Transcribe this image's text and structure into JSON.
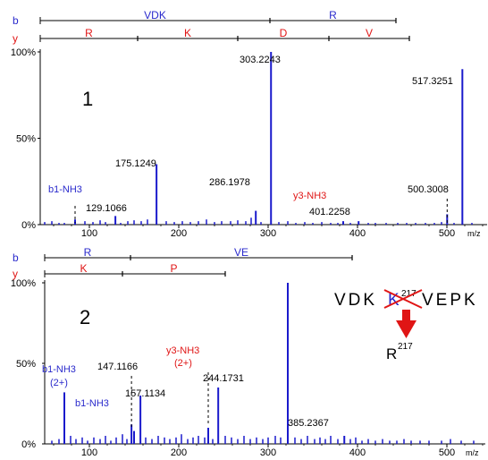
{
  "chart_data": [
    {
      "type": "bar",
      "panel_label": "1",
      "xlabel": "m/z",
      "xlim": [
        45,
        545
      ],
      "ylim": [
        0,
        100
      ],
      "x_ticks": [
        100,
        200,
        300,
        400,
        500
      ],
      "y_ticks": [
        "0%",
        "50%",
        "100%"
      ],
      "ladders": [
        {
          "ion": "b",
          "segments": [
            "VDK",
            "R"
          ],
          "color": "#2a2acc",
          "marks": [
            45,
            302,
            443
          ]
        },
        {
          "ion": "y",
          "segments": [
            "R",
            "K",
            "D",
            "V"
          ],
          "color": "#e01515",
          "marks": [
            45,
            154,
            266,
            368,
            458
          ]
        }
      ],
      "peaks": [
        {
          "mz": 84,
          "intensity": 3,
          "label": "b1-NH3",
          "label_color": "#2a2acc"
        },
        {
          "mz": 129.1066,
          "intensity": 5,
          "label": "129.1066"
        },
        {
          "mz": 175.1249,
          "intensity": 35,
          "label": "175.1249"
        },
        {
          "mz": 286.1978,
          "intensity": 8,
          "label": "286.1978"
        },
        {
          "mz": 303.2243,
          "intensity": 100,
          "label": "303.2243"
        },
        {
          "mz": 384,
          "intensity": 2,
          "label": "y3-NH3",
          "label_color": "#e01515"
        },
        {
          "mz": 401.2258,
          "intensity": 2,
          "label": "401.2258"
        },
        {
          "mz": 500.3008,
          "intensity": 6,
          "label": "500.3008"
        },
        {
          "mz": 517.3251,
          "intensity": 90,
          "label": "517.3251"
        }
      ],
      "noise": [
        [
          50,
          1.5
        ],
        [
          58,
          2
        ],
        [
          66,
          1
        ],
        [
          72,
          1
        ],
        [
          95,
          2
        ],
        [
          104,
          1.5
        ],
        [
          112,
          2.5
        ],
        [
          118,
          1.5
        ],
        [
          135,
          1
        ],
        [
          143,
          2
        ],
        [
          150,
          2.5
        ],
        [
          158,
          2
        ],
        [
          165,
          3
        ],
        [
          186,
          2
        ],
        [
          195,
          1.5
        ],
        [
          204,
          2
        ],
        [
          213,
          1.5
        ],
        [
          222,
          2
        ],
        [
          231,
          3
        ],
        [
          240,
          1.5
        ],
        [
          248,
          2
        ],
        [
          258,
          2
        ],
        [
          266,
          2.5
        ],
        [
          275,
          2
        ],
        [
          281,
          4
        ],
        [
          292,
          1.5
        ],
        [
          312,
          1.5
        ],
        [
          322,
          2
        ],
        [
          331,
          1
        ],
        [
          341,
          1.5
        ],
        [
          350,
          1
        ],
        [
          360,
          1.5
        ],
        [
          370,
          1
        ],
        [
          378,
          1
        ],
        [
          392,
          1
        ],
        [
          412,
          1
        ],
        [
          420,
          1
        ],
        [
          432,
          1
        ],
        [
          445,
          1
        ],
        [
          455,
          1
        ],
        [
          465,
          1
        ],
        [
          476,
          1
        ],
        [
          486,
          1
        ],
        [
          494,
          1.5
        ],
        [
          508,
          1
        ],
        [
          528,
          1
        ]
      ],
      "dashed_markers": [
        84,
        500.3008
      ]
    },
    {
      "type": "bar",
      "panel_label": "2",
      "xlabel": "m/z",
      "xlim": [
        50,
        543
      ],
      "ylim": [
        0,
        100
      ],
      "x_ticks": [
        100,
        200,
        300,
        400,
        500
      ],
      "y_ticks": [
        "0%",
        "50%",
        "100%"
      ],
      "ladders": [
        {
          "ion": "b",
          "segments": [
            "R",
            "VE"
          ],
          "color": "#2a2acc",
          "marks": [
            50,
            146,
            394
          ]
        },
        {
          "ion": "y",
          "segments": [
            "K",
            "P"
          ],
          "color": "#e01515",
          "marks": [
            50,
            137,
            252
          ]
        }
      ],
      "peaks": [
        {
          "mz": 72,
          "intensity": 32,
          "label": "b1-NH3\n(2+)",
          "label_color": "#2a2acc"
        },
        {
          "mz": 147.1166,
          "intensity": 12,
          "label": "147.1166"
        },
        {
          "mz": 150,
          "intensity": 8,
          "label": "b1-NH3",
          "label_color": "#2a2acc"
        },
        {
          "mz": 157.1134,
          "intensity": 30,
          "label": "157.1134"
        },
        {
          "mz": 233,
          "intensity": 10,
          "label": "y3-NH3\n(2+)",
          "label_color": "#e01515"
        },
        {
          "mz": 244.1731,
          "intensity": 35,
          "label": "244.1731"
        },
        {
          "mz": 322,
          "intensity": 100,
          "label": ""
        },
        {
          "mz": 385.2367,
          "intensity": 5,
          "label": "385.2367"
        }
      ],
      "noise": [
        [
          58,
          2
        ],
        [
          66,
          3
        ],
        [
          79,
          5
        ],
        [
          85,
          3
        ],
        [
          92,
          4
        ],
        [
          98,
          2
        ],
        [
          105,
          4
        ],
        [
          112,
          3
        ],
        [
          118,
          5
        ],
        [
          124,
          2
        ],
        [
          130,
          4
        ],
        [
          137,
          6
        ],
        [
          142,
          3
        ],
        [
          163,
          4
        ],
        [
          170,
          3
        ],
        [
          177,
          5
        ],
        [
          184,
          4
        ],
        [
          190,
          3
        ],
        [
          197,
          4
        ],
        [
          203,
          6
        ],
        [
          210,
          3
        ],
        [
          216,
          4
        ],
        [
          222,
          5
        ],
        [
          229,
          4
        ],
        [
          238,
          3
        ],
        [
          252,
          5
        ],
        [
          259,
          4
        ],
        [
          266,
          3
        ],
        [
          273,
          5
        ],
        [
          280,
          3
        ],
        [
          287,
          4
        ],
        [
          294,
          3
        ],
        [
          300,
          4
        ],
        [
          308,
          5
        ],
        [
          314,
          4
        ],
        [
          330,
          4
        ],
        [
          337,
          3
        ],
        [
          344,
          5
        ],
        [
          352,
          3
        ],
        [
          358,
          4
        ],
        [
          364,
          3
        ],
        [
          370,
          5
        ],
        [
          378,
          3
        ],
        [
          392,
          3
        ],
        [
          398,
          4
        ],
        [
          405,
          2
        ],
        [
          412,
          3
        ],
        [
          420,
          2
        ],
        [
          428,
          3
        ],
        [
          436,
          2
        ],
        [
          444,
          2
        ],
        [
          452,
          3
        ],
        [
          460,
          2
        ],
        [
          470,
          2
        ],
        [
          480,
          2
        ],
        [
          494,
          2
        ],
        [
          504,
          3
        ],
        [
          516,
          2
        ],
        [
          530,
          2
        ]
      ],
      "dashed_markers": [
        147.1166,
        233
      ]
    }
  ],
  "annotation": {
    "sequence_before": "VDK",
    "crossed_letter": "K",
    "crossed_superscript": "217",
    "sequence_after": "VEPK",
    "replacement": "R",
    "replacement_superscript": "217",
    "arrow_color": "#e01515",
    "cross_color": "#e01515"
  },
  "colors": {
    "b_ion": "#2a2acc",
    "y_ion": "#e01515",
    "peak": "#1a1acc",
    "axis": "#000000"
  }
}
